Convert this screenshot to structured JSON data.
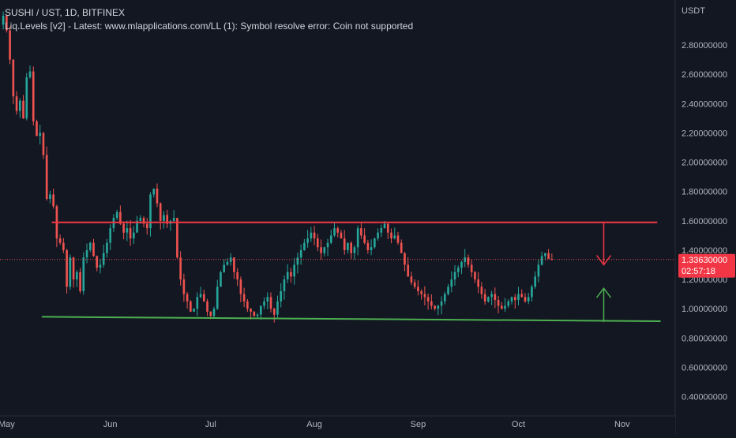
{
  "legend": {
    "symbol": "SUSHI / UST, 1D, BITFINEX",
    "indicator": "Liq.Levels [v2] - Latest: www.mlapplications.com/LL (1): Symbol resolve error: Coin not supported"
  },
  "colors": {
    "background": "#131722",
    "up": "#26a69a",
    "down": "#ef5350",
    "resistance": "#f23645",
    "support": "#4caf50",
    "axis_text": "#b2b5be",
    "current_price_bg": "#f23645"
  },
  "chart_data": {
    "type": "candlestick",
    "quote_currency": "USDT",
    "y_ticks": [
      "2.80000000",
      "2.60000000",
      "2.40000000",
      "2.20000000",
      "2.00000000",
      "1.80000000",
      "1.60000000",
      "1.40000000",
      "1.20000000",
      "1.00000000",
      "0.80000000",
      "0.60000000",
      "0.40000000"
    ],
    "y_tick_values": [
      2.8,
      2.6,
      2.4,
      2.2,
      2.0,
      1.8,
      1.6,
      1.4,
      1.2,
      1.0,
      0.8,
      0.6,
      0.4
    ],
    "x_ticks": [
      {
        "label": "May",
        "date": "2021-05-01"
      },
      {
        "label": "Jun",
        "date": "2021-06-01"
      },
      {
        "label": "Jul",
        "date": "2021-07-01"
      },
      {
        "label": "Aug",
        "date": "2021-08-01"
      },
      {
        "label": "Sep",
        "date": "2021-09-01"
      },
      {
        "label": "Oct",
        "date": "2021-10-01"
      },
      {
        "label": "Nov",
        "date": "2021-11-01"
      }
    ],
    "ylim": [
      0.36,
      3.0
    ],
    "xlim": [
      "2021-04-30",
      "2021-11-15"
    ],
    "current_price": "1.33630000",
    "countdown": "02:57:18",
    "current_price_value": 1.3363,
    "resistance_line": {
      "start": [
        "2021-05-15",
        1.59
      ],
      "end": [
        "2021-11-12",
        1.59
      ]
    },
    "support_line": {
      "start": [
        "2021-05-12",
        0.945
      ],
      "end": [
        "2021-11-13",
        0.915
      ]
    },
    "down_arrow": {
      "date": "2021-10-27",
      "from": 1.59,
      "to": 1.3
    },
    "up_arrow": {
      "date": "2021-10-27",
      "from": 0.91,
      "to": 1.14
    },
    "closes": [
      [
        "2021-04-30",
        3.0
      ],
      [
        "2021-05-01",
        2.9
      ],
      [
        "2021-05-02",
        2.7
      ],
      [
        "2021-05-03",
        2.45
      ],
      [
        "2021-05-04",
        2.35
      ],
      [
        "2021-05-05",
        2.42
      ],
      [
        "2021-05-06",
        2.3
      ],
      [
        "2021-05-07",
        2.58
      ],
      [
        "2021-05-08",
        2.62
      ],
      [
        "2021-05-09",
        2.28
      ],
      [
        "2021-05-10",
        2.18
      ],
      [
        "2021-05-11",
        2.2
      ],
      [
        "2021-05-12",
        2.05
      ],
      [
        "2021-05-13",
        1.75
      ],
      [
        "2021-05-14",
        1.78
      ],
      [
        "2021-05-15",
        1.7
      ],
      [
        "2021-05-16",
        1.48
      ],
      [
        "2021-05-17",
        1.45
      ],
      [
        "2021-05-18",
        1.4
      ],
      [
        "2021-05-19",
        1.15
      ],
      [
        "2021-05-20",
        1.35
      ],
      [
        "2021-05-21",
        1.2
      ],
      [
        "2021-05-22",
        1.25
      ],
      [
        "2021-05-23",
        1.12
      ],
      [
        "2021-05-24",
        1.35
      ],
      [
        "2021-05-25",
        1.4
      ],
      [
        "2021-05-26",
        1.45
      ],
      [
        "2021-05-27",
        1.36
      ],
      [
        "2021-05-28",
        1.28
      ],
      [
        "2021-05-29",
        1.3
      ],
      [
        "2021-05-30",
        1.38
      ],
      [
        "2021-05-31",
        1.45
      ],
      [
        "2021-06-01",
        1.55
      ],
      [
        "2021-06-02",
        1.62
      ],
      [
        "2021-06-03",
        1.66
      ],
      [
        "2021-06-04",
        1.58
      ],
      [
        "2021-06-05",
        1.52
      ],
      [
        "2021-06-06",
        1.55
      ],
      [
        "2021-06-07",
        1.48
      ],
      [
        "2021-06-08",
        1.52
      ],
      [
        "2021-06-09",
        1.6
      ],
      [
        "2021-06-10",
        1.62
      ],
      [
        "2021-06-11",
        1.58
      ],
      [
        "2021-06-12",
        1.55
      ],
      [
        "2021-06-13",
        1.78
      ],
      [
        "2021-06-14",
        1.82
      ],
      [
        "2021-06-15",
        1.72
      ],
      [
        "2021-06-16",
        1.6
      ],
      [
        "2021-06-17",
        1.64
      ],
      [
        "2021-06-18",
        1.58
      ],
      [
        "2021-06-19",
        1.6
      ],
      [
        "2021-06-20",
        1.62
      ],
      [
        "2021-06-21",
        1.35
      ],
      [
        "2021-06-22",
        1.2
      ],
      [
        "2021-06-23",
        1.1
      ],
      [
        "2021-06-24",
        1.05
      ],
      [
        "2021-06-25",
        0.98
      ],
      [
        "2021-06-26",
        1.0
      ],
      [
        "2021-06-27",
        1.08
      ],
      [
        "2021-06-28",
        1.1
      ],
      [
        "2021-06-29",
        1.05
      ],
      [
        "2021-06-30",
        0.98
      ],
      [
        "2021-07-01",
        0.95
      ],
      [
        "2021-07-02",
        1.0
      ],
      [
        "2021-07-03",
        1.15
      ],
      [
        "2021-07-04",
        1.25
      ],
      [
        "2021-07-05",
        1.3
      ],
      [
        "2021-07-06",
        1.32
      ],
      [
        "2021-07-07",
        1.35
      ],
      [
        "2021-07-08",
        1.25
      ],
      [
        "2021-07-09",
        1.2
      ],
      [
        "2021-07-10",
        1.1
      ],
      [
        "2021-07-11",
        1.05
      ],
      [
        "2021-07-12",
        1.0
      ],
      [
        "2021-07-13",
        0.98
      ],
      [
        "2021-07-14",
        0.95
      ],
      [
        "2021-07-15",
        0.96
      ],
      [
        "2021-07-16",
        1.02
      ],
      [
        "2021-07-17",
        1.05
      ],
      [
        "2021-07-18",
        1.08
      ],
      [
        "2021-07-19",
        1.0
      ],
      [
        "2021-07-20",
        0.96
      ],
      [
        "2021-07-21",
        1.05
      ],
      [
        "2021-07-22",
        1.12
      ],
      [
        "2021-07-23",
        1.2
      ],
      [
        "2021-07-24",
        1.25
      ],
      [
        "2021-07-25",
        1.22
      ],
      [
        "2021-07-26",
        1.3
      ],
      [
        "2021-07-27",
        1.35
      ],
      [
        "2021-07-28",
        1.4
      ],
      [
        "2021-07-29",
        1.45
      ],
      [
        "2021-07-30",
        1.48
      ],
      [
        "2021-07-31",
        1.52
      ],
      [
        "2021-08-01",
        1.48
      ],
      [
        "2021-08-02",
        1.42
      ],
      [
        "2021-08-03",
        1.38
      ],
      [
        "2021-08-04",
        1.42
      ],
      [
        "2021-08-05",
        1.45
      ],
      [
        "2021-08-06",
        1.5
      ],
      [
        "2021-08-07",
        1.55
      ],
      [
        "2021-08-08",
        1.52
      ],
      [
        "2021-08-09",
        1.48
      ],
      [
        "2021-08-10",
        1.4
      ],
      [
        "2021-08-11",
        1.45
      ],
      [
        "2021-08-12",
        1.38
      ],
      [
        "2021-08-13",
        1.42
      ],
      [
        "2021-08-14",
        1.55
      ],
      [
        "2021-08-15",
        1.5
      ],
      [
        "2021-08-16",
        1.45
      ],
      [
        "2021-08-17",
        1.4
      ],
      [
        "2021-08-18",
        1.42
      ],
      [
        "2021-08-19",
        1.48
      ],
      [
        "2021-08-20",
        1.52
      ],
      [
        "2021-08-21",
        1.55
      ],
      [
        "2021-08-22",
        1.58
      ],
      [
        "2021-08-23",
        1.52
      ],
      [
        "2021-08-24",
        1.48
      ],
      [
        "2021-08-25",
        1.5
      ],
      [
        "2021-08-26",
        1.45
      ],
      [
        "2021-08-27",
        1.38
      ],
      [
        "2021-08-28",
        1.3
      ],
      [
        "2021-08-29",
        1.22
      ],
      [
        "2021-08-30",
        1.18
      ],
      [
        "2021-08-31",
        1.15
      ],
      [
        "2021-09-01",
        1.12
      ],
      [
        "2021-09-02",
        1.1
      ],
      [
        "2021-09-03",
        1.08
      ],
      [
        "2021-09-04",
        1.05
      ],
      [
        "2021-09-05",
        1.02
      ],
      [
        "2021-09-06",
        1.0
      ],
      [
        "2021-09-07",
        1.02
      ],
      [
        "2021-09-08",
        1.05
      ],
      [
        "2021-09-09",
        1.1
      ],
      [
        "2021-09-10",
        1.15
      ],
      [
        "2021-09-11",
        1.2
      ],
      [
        "2021-09-12",
        1.25
      ],
      [
        "2021-09-13",
        1.28
      ],
      [
        "2021-09-14",
        1.32
      ],
      [
        "2021-09-15",
        1.35
      ],
      [
        "2021-09-16",
        1.3
      ],
      [
        "2021-09-17",
        1.25
      ],
      [
        "2021-09-18",
        1.2
      ],
      [
        "2021-09-19",
        1.15
      ],
      [
        "2021-09-20",
        1.1
      ],
      [
        "2021-09-21",
        1.05
      ],
      [
        "2021-09-22",
        1.08
      ],
      [
        "2021-09-23",
        1.1
      ],
      [
        "2021-09-24",
        1.06
      ],
      [
        "2021-09-25",
        1.02
      ],
      [
        "2021-09-26",
        1.0
      ],
      [
        "2021-09-27",
        1.02
      ],
      [
        "2021-09-28",
        1.05
      ],
      [
        "2021-09-29",
        1.08
      ],
      [
        "2021-09-30",
        1.06
      ],
      [
        "2021-10-01",
        1.1
      ],
      [
        "2021-10-02",
        1.08
      ],
      [
        "2021-10-03",
        1.05
      ],
      [
        "2021-10-04",
        1.08
      ],
      [
        "2021-10-05",
        1.15
      ],
      [
        "2021-10-06",
        1.22
      ],
      [
        "2021-10-07",
        1.3
      ],
      [
        "2021-10-08",
        1.36
      ],
      [
        "2021-10-09",
        1.38
      ],
      [
        "2021-10-10",
        1.34
      ],
      [
        "2021-10-11",
        1.3363
      ]
    ]
  }
}
